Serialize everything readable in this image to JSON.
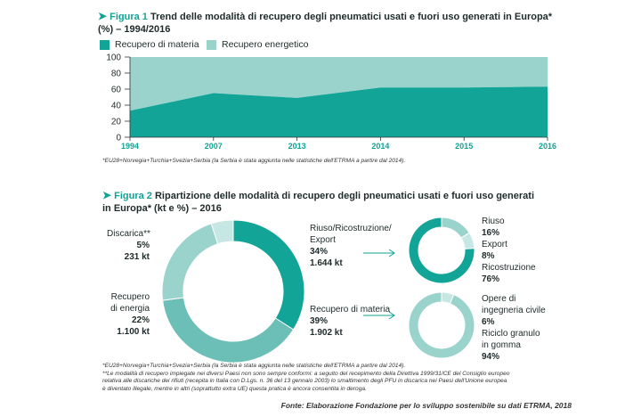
{
  "figure1": {
    "number": "Figura 1",
    "title": "Trend delle modalità di recupero degli pneumatici usati e fuori uso generati in Europa*",
    "title2": "(%) – 1994/2016",
    "footnote": "*EU28+Norvegia+Turchia+Svezia+Serbia (la Serbia è stata aggiunta nelle statistiche dell'ETRMA a partire dal 2014)."
  },
  "figure2": {
    "number": "Figura 2",
    "title": "Ripartizione delle modalità di recupero degli pneumatici usati e fuori uso generati",
    "title2": "in Europa* (kt e %) – 2016",
    "footnote1": "*EU28+Norvegia+Turchia+Svezia+Serbia (la Serbia è stata aggiunta nelle statistiche dell'ETRMA a partire dal 2014).",
    "footnote2": "**Le modalità di recupero impiegate nei diversi Paesi non sono sempre conformi: a seguito del recepimento della Direttiva 1999/31/CE del Consiglio europeo",
    "footnote3": "relativa alle discariche dei rifiuti (recepita in Italia con D.Lgs. n. 36 del 13 gennaio 2003) lo smaltimento degli PFU in discarica nei Paesi dell'Unione europea",
    "footnote4": "è diventato illegale, mentre in altri (soprattutto extra UE) questa pratica è ancora consentita in deroga.",
    "labels": {
      "discarica": {
        "name": "Discarica**",
        "pct": "5%",
        "kt": "231 kt"
      },
      "riuso": {
        "name1": "Riuso/Ricostruzione/",
        "name2": "Export",
        "pct": "34%",
        "kt": "1.644 kt"
      },
      "energia": {
        "name1": "Recupero",
        "name2": "di energia",
        "pct": "22%",
        "kt": "1.100 kt"
      },
      "materia": {
        "name": "Recupero di materia",
        "pct": "39%",
        "kt": "1.902 kt"
      },
      "sub1": {
        "riuso": "Riuso",
        "riuso_pct": "16%",
        "export": "Export",
        "export_pct": "8%",
        "ricostruzione": "Ricostruzione",
        "ricostruzione_pct": "76%"
      },
      "sub2": {
        "opere1": "Opere di",
        "opere2": "ingegneria civile",
        "opere_pct": "6%",
        "riciclo1": "Riciclo granulo",
        "riciclo2": "in gomma",
        "riciclo_pct": "94%"
      }
    }
  },
  "source": "Fonte: Elaborazione Fondazione per lo sviluppo sostenibile su dati ETRMA, 2018",
  "colors": {
    "accent": "#10a396",
    "dark": "#12a597",
    "mid": "#6cbfb6",
    "light": "#9ad3cc",
    "lightest": "#c6e7e3"
  },
  "chart_data": [
    {
      "type": "area",
      "x": [
        "1994",
        "2007",
        "2013",
        "2014",
        "2015",
        "2016"
      ],
      "series": [
        {
          "name": "Recupero di materia",
          "values": [
            33,
            55,
            49,
            62,
            62,
            63
          ]
        },
        {
          "name": "Recupero energetico",
          "values": [
            67,
            45,
            51,
            38,
            38,
            37
          ]
        }
      ],
      "ylim": [
        0,
        100
      ],
      "yticks": [
        "0",
        "20",
        "40",
        "60",
        "80",
        "100"
      ],
      "stacked": true,
      "legend": "top-left"
    },
    {
      "type": "pie",
      "donut": true,
      "categories": [
        "Riuso/Ricostruzione/Export",
        "Recupero di materia",
        "Recupero di energia",
        "Discarica**"
      ],
      "values": [
        34,
        39,
        22,
        5
      ],
      "kt": [
        1644,
        1902,
        1100,
        231
      ]
    },
    {
      "type": "pie",
      "donut": true,
      "categories": [
        "Riuso",
        "Export",
        "Ricostruzione"
      ],
      "values": [
        16,
        8,
        76
      ]
    },
    {
      "type": "pie",
      "donut": true,
      "categories": [
        "Opere di ingegneria civile",
        "Riciclo granulo in gomma"
      ],
      "values": [
        6,
        94
      ]
    }
  ]
}
